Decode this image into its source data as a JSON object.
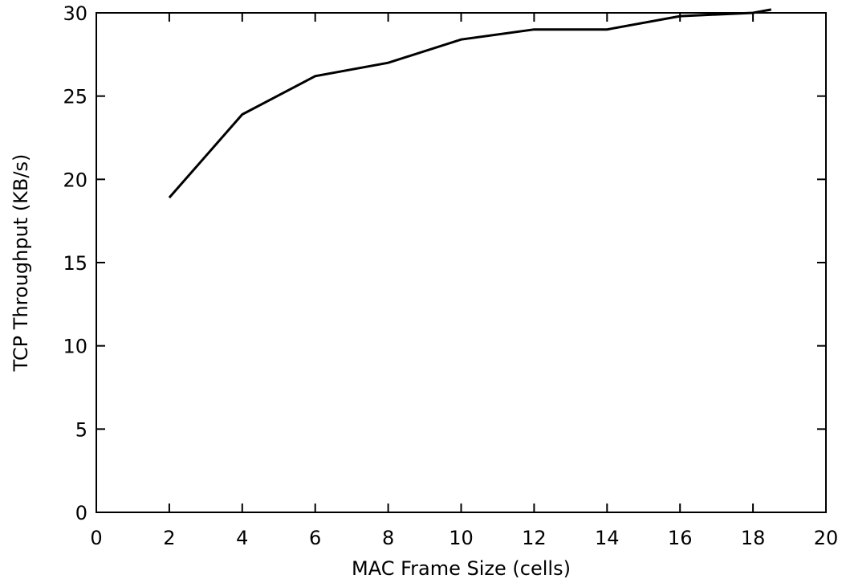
{
  "chart_data": {
    "type": "line",
    "xlabel": "MAC Frame Size (cells)",
    "ylabel": "TCP Throughput (KB/s)",
    "xlim": [
      0,
      20
    ],
    "ylim": [
      0,
      30
    ],
    "xticks": [
      0,
      2,
      4,
      6,
      8,
      10,
      12,
      14,
      16,
      18,
      20
    ],
    "yticks": [
      0,
      5,
      10,
      15,
      20,
      25,
      30
    ],
    "grid": false,
    "series": [
      {
        "x": [
          2,
          4,
          6,
          8,
          10,
          12,
          14,
          16,
          18,
          18.5
        ],
        "y": [
          18.9,
          23.9,
          26.2,
          27.0,
          28.4,
          29.0,
          29.0,
          29.8,
          30.0,
          30.2
        ]
      }
    ]
  },
  "colors": {
    "axis": "#000000",
    "line": "#000000",
    "background": "#ffffff"
  }
}
